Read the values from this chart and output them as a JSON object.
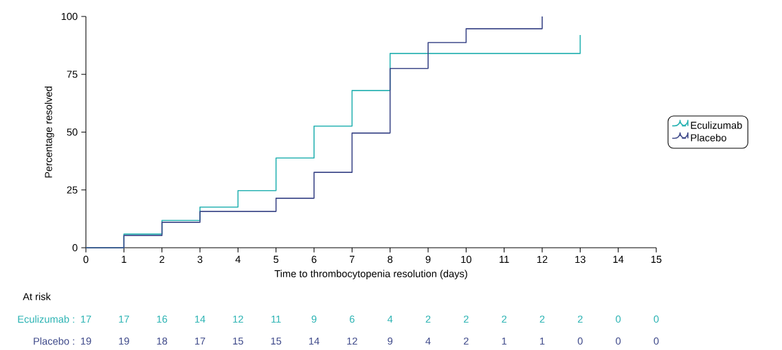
{
  "chart_data": {
    "type": "step",
    "xlabel": "Time to thrombocytopenia resolution (days)",
    "ylabel": "Percentage resolved",
    "xlim": [
      0,
      15
    ],
    "ylim": [
      0,
      100
    ],
    "xticks": [
      0,
      1,
      2,
      3,
      4,
      5,
      6,
      7,
      8,
      9,
      10,
      11,
      12,
      13,
      14,
      15
    ],
    "yticks": [
      0,
      25,
      50,
      75,
      100
    ],
    "legend": "right",
    "series": [
      {
        "name": "Eculizumab",
        "color": "#2bb3b3",
        "x": [
          0,
          1,
          2,
          3,
          4,
          5,
          6,
          7,
          8,
          13
        ],
        "values": [
          0,
          5.9,
          11.8,
          17.6,
          24.7,
          38.8,
          52.6,
          68.0,
          84.0,
          92.0
        ]
      },
      {
        "name": "Placebo",
        "color": "#3f4a8a",
        "x": [
          0,
          1,
          2,
          3,
          5,
          6,
          7,
          8,
          9,
          10,
          12
        ],
        "values": [
          0,
          5.3,
          11.0,
          15.7,
          21.4,
          32.6,
          49.6,
          77.5,
          88.7,
          94.7,
          100
        ]
      }
    ],
    "annotations": [
      "At risk",
      "Eculizumab :",
      "17",
      "17",
      "16",
      "14",
      "12",
      "11",
      "9",
      "6",
      "4",
      "2",
      "2",
      "2",
      "2",
      "2",
      "0",
      "0",
      "Placebo :",
      "19",
      "19",
      "18",
      "17",
      "15",
      "15",
      "14",
      "12",
      "9",
      "4",
      "2",
      "1",
      "1",
      "0",
      "0",
      "0"
    ]
  }
}
